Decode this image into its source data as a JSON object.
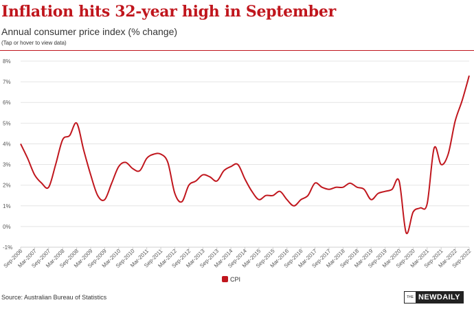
{
  "header": {
    "title": "Inflation hits 32-year high in September",
    "subtitle": "Annual consumer price index (% change)",
    "note": "(Tap or hover to view data)"
  },
  "footer": {
    "source": "Source: Australian Bureau of Statistics",
    "logo_prefix": "THE",
    "logo_name": "NEWDAILY"
  },
  "colors": {
    "accent": "#c0161d",
    "series": "#c0161d",
    "grid": "#e4e4e4"
  },
  "chart_data": {
    "type": "line",
    "title": "Inflation hits 32-year high in September",
    "subtitle": "Annual consumer price index (% change)",
    "xlabel": "",
    "ylabel": "",
    "ylim": [
      -1,
      8
    ],
    "grid": true,
    "legend": "bottom-center",
    "y_ticks": [
      "-1%",
      "0%",
      "1%",
      "2%",
      "3%",
      "4%",
      "5%",
      "6%",
      "7%",
      "8%"
    ],
    "x": [
      "Sep-2006",
      "Dec-2006",
      "Mar-2007",
      "Jun-2007",
      "Sep-2007",
      "Dec-2007",
      "Mar-2008",
      "Jun-2008",
      "Sep-2008",
      "Dec-2008",
      "Mar-2009",
      "Jun-2009",
      "Sep-2009",
      "Dec-2009",
      "Mar-2010",
      "Jun-2010",
      "Sep-2010",
      "Dec-2010",
      "Mar-2011",
      "Jun-2011",
      "Sep-2011",
      "Dec-2011",
      "Mar-2012",
      "Jun-2012",
      "Sep-2012",
      "Dec-2012",
      "Mar-2013",
      "Jun-2013",
      "Sep-2013",
      "Dec-2013",
      "Mar-2014",
      "Jun-2014",
      "Sep-2014",
      "Dec-2014",
      "Mar-2015",
      "Jun-2015",
      "Sep-2015",
      "Dec-2015",
      "Mar-2016",
      "Jun-2016",
      "Sep-2016",
      "Dec-2016",
      "Mar-2017",
      "Jun-2017",
      "Sep-2017",
      "Dec-2017",
      "Mar-2018",
      "Jun-2018",
      "Sep-2018",
      "Dec-2018",
      "Mar-2019",
      "Jun-2019",
      "Sep-2019",
      "Dec-2019",
      "Mar-2020",
      "Jun-2020",
      "Sep-2020",
      "Dec-2020",
      "Mar-2021",
      "Jun-2021",
      "Sep-2021",
      "Dec-2021",
      "Mar-2022",
      "Jun-2022",
      "Sep-2022"
    ],
    "x_tick_labels": [
      "Sep-2006",
      "Mar-2007",
      "Sep-2007",
      "Mar-2008",
      "Sep-2008",
      "Mar-2009",
      "Sep-2009",
      "Mar-2010",
      "Sep-2010",
      "Mar-2011",
      "Sep-2011",
      "Mar-2012",
      "Sep-2012",
      "Mar-2013",
      "Sep-2013",
      "Mar-2014",
      "Sep-2014",
      "Mar-2015",
      "Sep-2015",
      "Mar-2016",
      "Sep-2016",
      "Mar-2017",
      "Sep-2017",
      "Mar-2018",
      "Sep-2018",
      "Mar-2019",
      "Sep-2019",
      "Mar-2020",
      "Sep-2020",
      "Mar-2021",
      "Sep-2021",
      "Mar-2022",
      "Sep-2022"
    ],
    "series": [
      {
        "name": "CPI",
        "values": [
          4.0,
          3.3,
          2.5,
          2.1,
          1.9,
          3.0,
          4.2,
          4.4,
          5.0,
          3.7,
          2.5,
          1.5,
          1.3,
          2.1,
          2.9,
          3.1,
          2.8,
          2.7,
          3.3,
          3.5,
          3.5,
          3.1,
          1.6,
          1.2,
          2.0,
          2.2,
          2.5,
          2.4,
          2.2,
          2.7,
          2.9,
          3.0,
          2.3,
          1.7,
          1.3,
          1.5,
          1.5,
          1.7,
          1.3,
          1.0,
          1.3,
          1.5,
          2.1,
          1.9,
          1.8,
          1.9,
          1.9,
          2.1,
          1.9,
          1.8,
          1.3,
          1.6,
          1.7,
          1.8,
          2.2,
          -0.3,
          0.7,
          0.9,
          1.1,
          3.8,
          3.0,
          3.5,
          5.1,
          6.1,
          7.3
        ]
      }
    ]
  }
}
